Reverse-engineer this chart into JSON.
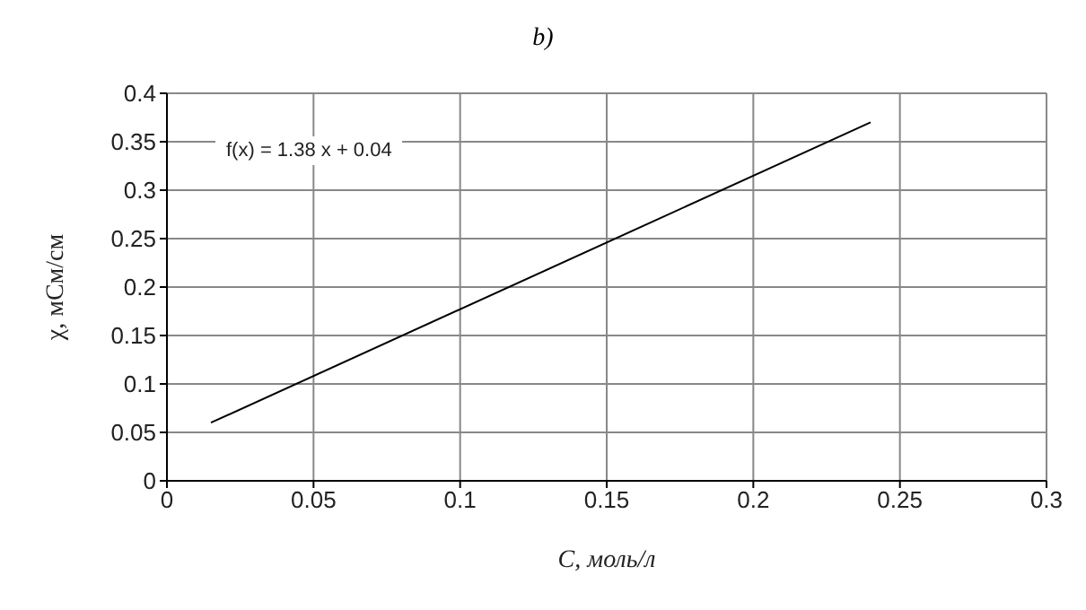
{
  "chart_data": {
    "type": "line",
    "title": "b)",
    "xlabel": "C, моль/л",
    "ylabel": "χ, мСм/см",
    "annotations": [
      "f(x) = 1.38 x + 0.04"
    ],
    "x": [
      0.015,
      0.24
    ],
    "series": [
      {
        "color": "#000000",
        "values": [
          0.06,
          0.37
        ]
      }
    ],
    "xlim": [
      0,
      0.3
    ],
    "xticks": [
      0,
      0.05,
      0.1,
      0.15,
      0.2,
      0.25,
      0.3
    ],
    "ylim": [
      0,
      0.4
    ],
    "yticks": [
      0,
      0.05,
      0.1,
      0.15,
      0.2,
      0.25,
      0.3,
      0.35,
      0.4
    ],
    "grid": true,
    "marker": "none",
    "line_style": "solid",
    "legend": false
  }
}
